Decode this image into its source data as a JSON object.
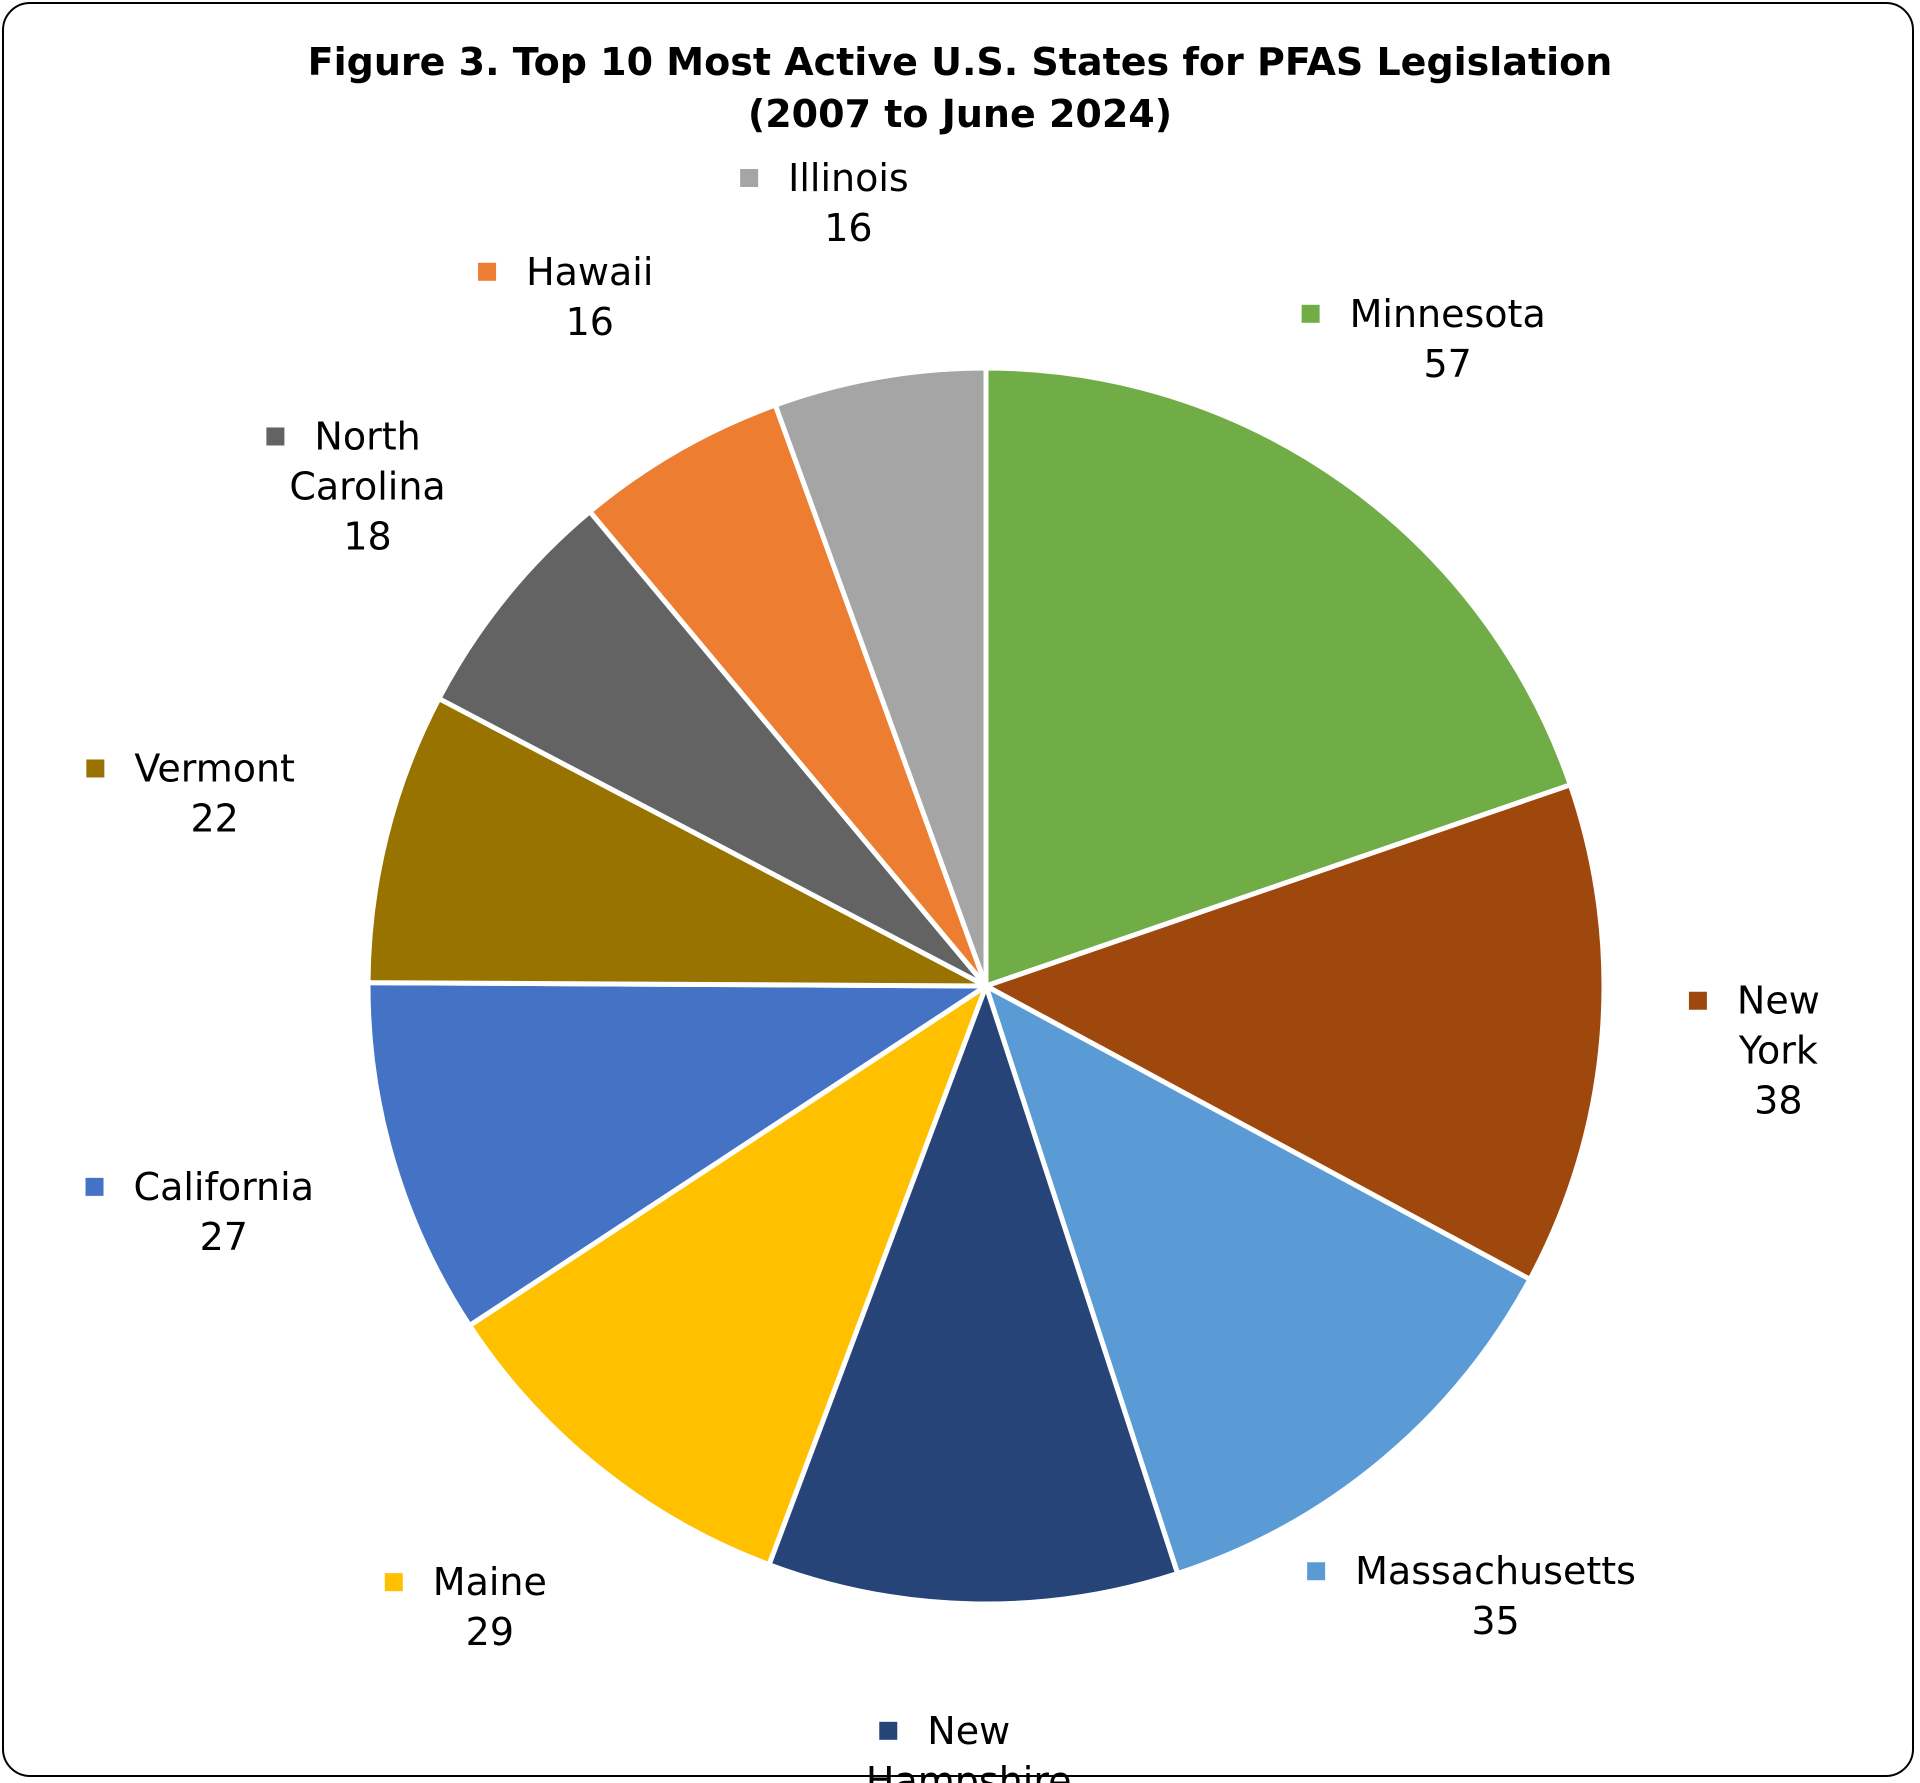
{
  "chart_data": {
    "type": "pie",
    "title_lines": [
      "Figure 3. Top 10 Most Active U.S. States for PFAS Legislation",
      "(2007 to June 2024)"
    ],
    "slices": [
      {
        "label_lines": [
          "Minnesota"
        ],
        "value": 57,
        "color": "#70AD47"
      },
      {
        "label_lines": [
          "New",
          "York"
        ],
        "value": 38,
        "color": "#9E480E"
      },
      {
        "label_lines": [
          "Massachusetts"
        ],
        "value": 35,
        "color": "#5B9BD5"
      },
      {
        "label_lines": [
          "New",
          "Hampshire"
        ],
        "value": 31,
        "color": "#264478"
      },
      {
        "label_lines": [
          "Maine"
        ],
        "value": 29,
        "color": "#FFC000"
      },
      {
        "label_lines": [
          "California"
        ],
        "value": 27,
        "color": "#4472C4"
      },
      {
        "label_lines": [
          "Vermont"
        ],
        "value": 22,
        "color": "#997300"
      },
      {
        "label_lines": [
          "North",
          "Carolina"
        ],
        "value": 18,
        "color": "#636363"
      },
      {
        "label_lines": [
          "Hawaii"
        ],
        "value": 16,
        "color": "#ED7D31"
      },
      {
        "label_lines": [
          "Illinois"
        ],
        "value": 16,
        "color": "#A5A5A5"
      }
    ],
    "start_angle_deg": 0,
    "direction": "clockwise",
    "legend": "data labels with color markers outside the pie",
    "show_values": true
  }
}
